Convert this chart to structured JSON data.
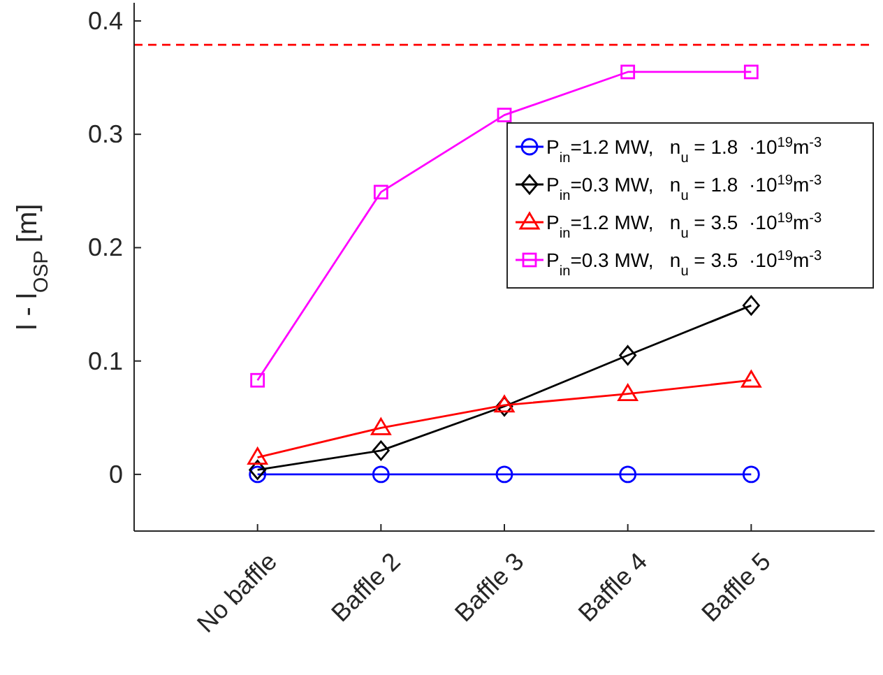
{
  "chart_data": {
    "type": "line",
    "ylabel": "l - l$_{OSP}$ [m]",
    "categories": [
      "No baffle",
      "Baffle 2",
      "Baffle 3",
      "Baffle 4",
      "Baffle 5"
    ],
    "series": [
      {
        "name": "P$_{in}$=1.2 MW,   n$_{u}$ = 1.8  ·10$^{19}$m$^{-3}$",
        "color": "#0000ff",
        "marker": "circle",
        "values": [
          0,
          0,
          0,
          0,
          0
        ]
      },
      {
        "name": "P$_{in}$=0.3 MW,   n$_{u}$ = 1.8  ·10$^{19}$m$^{-3}$",
        "color": "#000000",
        "marker": "diamond",
        "values": [
          0.004,
          0.021,
          0.06,
          0.105,
          0.149
        ]
      },
      {
        "name": "P$_{in}$=1.2 MW,   n$_{u}$ = 3.5  ·10$^{19}$m$^{-3}$",
        "color": "#ff0000",
        "marker": "triangle",
        "values": [
          0.015,
          0.041,
          0.061,
          0.071,
          0.083
        ]
      },
      {
        "name": "P$_{in}$=0.3 MW,   n$_{u}$ = 3.5  ·10$^{19}$m$^{-3}$",
        "color": "#ff00ff",
        "marker": "square",
        "values": [
          0.083,
          0.249,
          0.317,
          0.355,
          0.355
        ]
      }
    ],
    "ylim": [
      -0.05,
      0.416
    ],
    "yticks": [
      0,
      0.1,
      0.2,
      0.3,
      0.4
    ],
    "ref_lines": [
      {
        "axis": "y",
        "value": 0.379,
        "color": "#ff0000",
        "line_style": "dashed"
      }
    ],
    "legend": "top right",
    "grid": false
  }
}
